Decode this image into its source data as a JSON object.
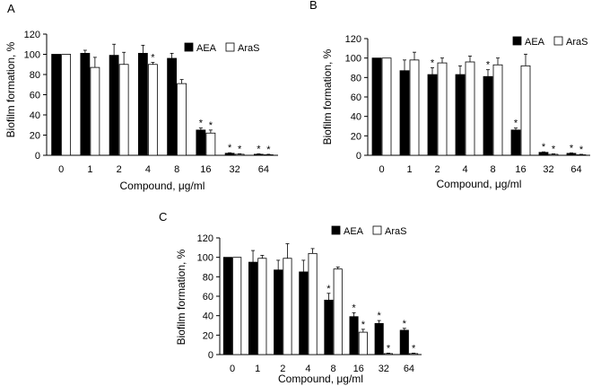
{
  "chart_data": [
    {
      "panel_label": "A",
      "type": "bar",
      "categories": [
        "0",
        "1",
        "2",
        "4",
        "8",
        "16",
        "32",
        "64"
      ],
      "xlabel": "Compound, μg/ml",
      "ylabel": "Biofilm formation, %",
      "ylim": [
        0,
        120
      ],
      "yticks": [
        "0",
        "20",
        "40",
        "60",
        "80",
        "100",
        "120"
      ],
      "grid": false,
      "legend_position": "top-right",
      "series": [
        {
          "name": "AEA",
          "fill": "#000000",
          "values": [
            100,
            101,
            99,
            101,
            96,
            25,
            2,
            1
          ],
          "errors": [
            0,
            3,
            11,
            8,
            5,
            2,
            0.5,
            0.5
          ],
          "significant": [
            false,
            false,
            false,
            false,
            false,
            true,
            true,
            true
          ]
        },
        {
          "name": "AraS",
          "fill": "#ffffff",
          "values": [
            100,
            87,
            90,
            90,
            71,
            22,
            1,
            0.5
          ],
          "errors": [
            0,
            10,
            12,
            2,
            4,
            3,
            0.5,
            0.5
          ],
          "significant": [
            false,
            false,
            false,
            true,
            false,
            true,
            true,
            true
          ]
        }
      ]
    },
    {
      "panel_label": "B",
      "type": "bar",
      "categories": [
        "0",
        "1",
        "2",
        "4",
        "8",
        "16",
        "32",
        "64"
      ],
      "xlabel": "Compound, μg/ml",
      "ylabel": "Biofilm formation, %",
      "ylim": [
        0,
        120
      ],
      "yticks": [
        "0",
        "20",
        "40",
        "60",
        "80",
        "100",
        "120"
      ],
      "grid": false,
      "legend_position": "top-right",
      "series": [
        {
          "name": "AEA",
          "fill": "#000000",
          "values": [
            100,
            87,
            83,
            83,
            81,
            26,
            3,
            2
          ],
          "errors": [
            0,
            11,
            7,
            9,
            7,
            2,
            0.5,
            0.5
          ],
          "significant": [
            false,
            false,
            true,
            false,
            true,
            true,
            true,
            true
          ]
        },
        {
          "name": "AraS",
          "fill": "#ffffff",
          "values": [
            100,
            98,
            95,
            96,
            93,
            92,
            1,
            0.5
          ],
          "errors": [
            0,
            8,
            5,
            6,
            7,
            12,
            0.5,
            0.5
          ],
          "significant": [
            false,
            false,
            false,
            false,
            false,
            false,
            true,
            true
          ]
        }
      ]
    },
    {
      "panel_label": "C",
      "type": "bar",
      "categories": [
        "0",
        "1",
        "2",
        "4",
        "8",
        "16",
        "32",
        "64"
      ],
      "xlabel": "Compound, μg/ml",
      "ylabel": "Biofilm formation, %",
      "ylim": [
        0,
        120
      ],
      "yticks": [
        "0",
        "20",
        "40",
        "60",
        "80",
        "100",
        "120"
      ],
      "grid": false,
      "legend_position": "top-right",
      "series": [
        {
          "name": "AEA",
          "fill": "#000000",
          "values": [
            100,
            95,
            87,
            85,
            56,
            39,
            32,
            25
          ],
          "errors": [
            0,
            12,
            10,
            12,
            7,
            4,
            3,
            2
          ],
          "significant": [
            false,
            false,
            false,
            false,
            true,
            true,
            true,
            true
          ]
        },
        {
          "name": "AraS",
          "fill": "#ffffff",
          "values": [
            100,
            99,
            99,
            104,
            88,
            23,
            1,
            1
          ],
          "errors": [
            0,
            3,
            15,
            5,
            2,
            3,
            0.5,
            0.5
          ],
          "significant": [
            false,
            false,
            false,
            false,
            false,
            true,
            true,
            true
          ]
        }
      ]
    }
  ]
}
